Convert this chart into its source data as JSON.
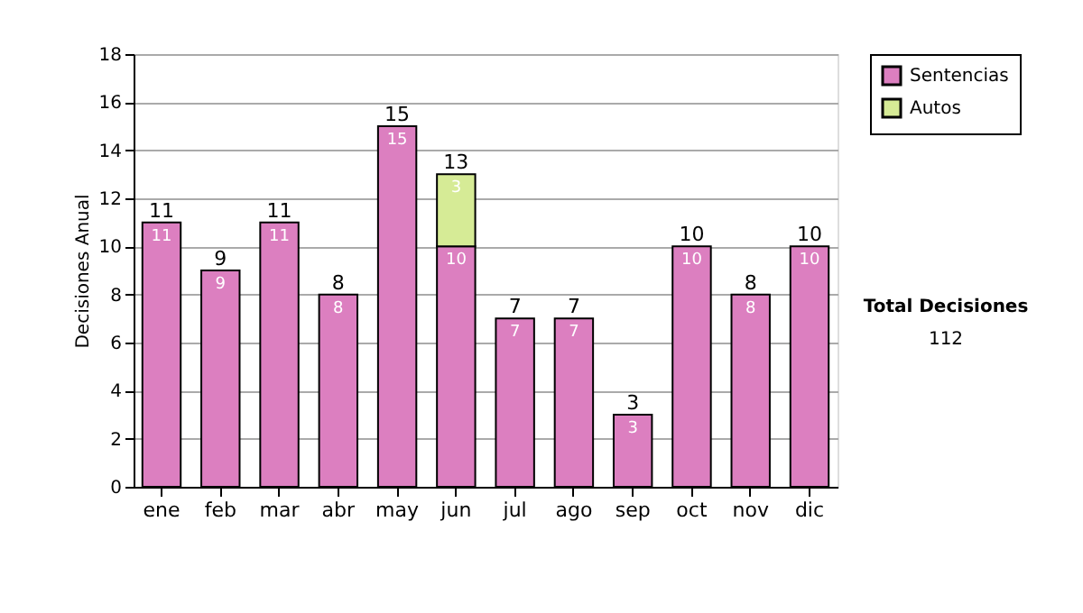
{
  "chart_data": {
    "type": "bar",
    "ylabel": "Decisiones Anual",
    "stacked": true,
    "categories": [
      "ene",
      "feb",
      "mar",
      "abr",
      "may",
      "jun",
      "jul",
      "ago",
      "sep",
      "oct",
      "nov",
      "dic"
    ],
    "series": [
      {
        "name": "Sentencias",
        "color": "#dc7fc0",
        "values": [
          11,
          9,
          11,
          8,
          15,
          10,
          7,
          7,
          3,
          10,
          8,
          10
        ]
      },
      {
        "name": "Autos",
        "color": "#d6eb96",
        "values": [
          null,
          null,
          null,
          null,
          null,
          3,
          null,
          null,
          null,
          null,
          null,
          null
        ]
      }
    ],
    "totals": [
      "11",
      "9",
      "11",
      "8",
      "15",
      "13",
      "7",
      "7",
      "3",
      "10",
      "8",
      "10"
    ],
    "data_labels": true,
    "ylim": [
      0,
      18
    ],
    "yticks": [
      0,
      2,
      4,
      6,
      8,
      10,
      12,
      14,
      16,
      18
    ],
    "grid": "y",
    "legend": "right",
    "annotations": [
      "Total Decisiones",
      "112"
    ]
  }
}
